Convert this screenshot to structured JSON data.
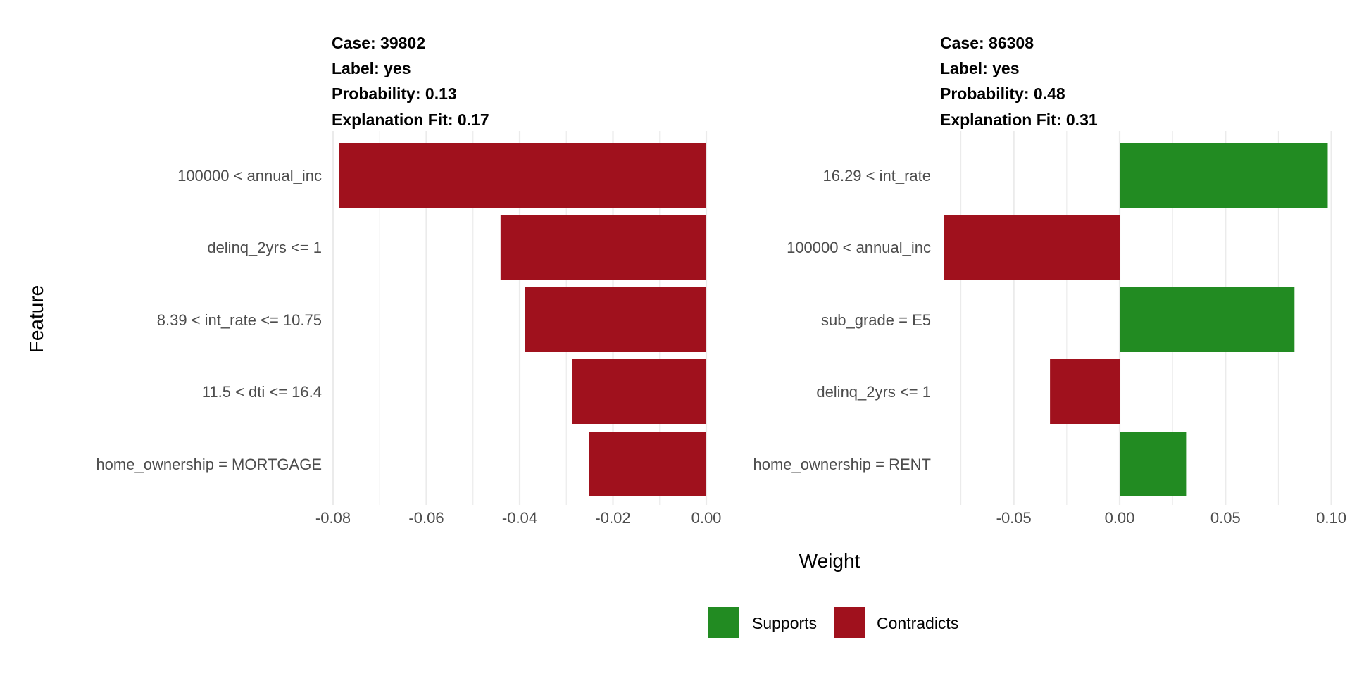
{
  "colors": {
    "supports": "#228b22",
    "contradicts": "#a0111d",
    "grid": "#ebebeb",
    "text": "#4d4d4d"
  },
  "axis_titles": {
    "x": "Weight",
    "y": "Feature"
  },
  "legend": [
    {
      "key": "supports",
      "label": "Supports"
    },
    {
      "key": "contradicts",
      "label": "Contradicts"
    }
  ],
  "chart_data": [
    {
      "type": "bar",
      "orientation": "horizontal",
      "header": [
        "Case: 39802",
        "Label: yes",
        "Probability: 0.13",
        "Explanation Fit: 0.17"
      ],
      "categories": [
        "100000 < annual_inc",
        "delinq_2yrs <= 1",
        "8.39 < int_rate <= 10.75",
        "11.5 < dti <= 16.4",
        "home_ownership = MORTGAGE"
      ],
      "values": [
        -0.0787,
        -0.0441,
        -0.0389,
        -0.0288,
        -0.0251
      ],
      "xlim": [
        -0.0803,
        0.0003
      ],
      "ticks": [
        -0.08,
        -0.06,
        -0.04,
        -0.02,
        0.0
      ],
      "tick_labels": [
        "-0.08",
        "-0.06",
        "-0.04",
        "-0.02",
        "0.00"
      ],
      "xlabel": "Weight",
      "ylabel": "Feature"
    },
    {
      "type": "bar",
      "orientation": "horizontal",
      "header": [
        "Case: 86308",
        "Label: yes",
        "Probability: 0.48",
        "Explanation Fit: 0.31"
      ],
      "categories": [
        "16.29 < int_rate",
        "100000 < annual_inc",
        "sub_grade = E5",
        "delinq_2yrs <= 1",
        "home_ownership = RENT"
      ],
      "values": [
        0.0983,
        -0.083,
        0.0826,
        -0.0329,
        0.0314
      ],
      "xlim": [
        -0.0845,
        0.1008
      ],
      "ticks": [
        -0.05,
        0.0,
        0.05,
        0.1
      ],
      "tick_labels": [
        "-0.05",
        "0.00",
        "0.05",
        "0.10"
      ],
      "xlabel": "Weight",
      "ylabel": "Feature"
    }
  ]
}
